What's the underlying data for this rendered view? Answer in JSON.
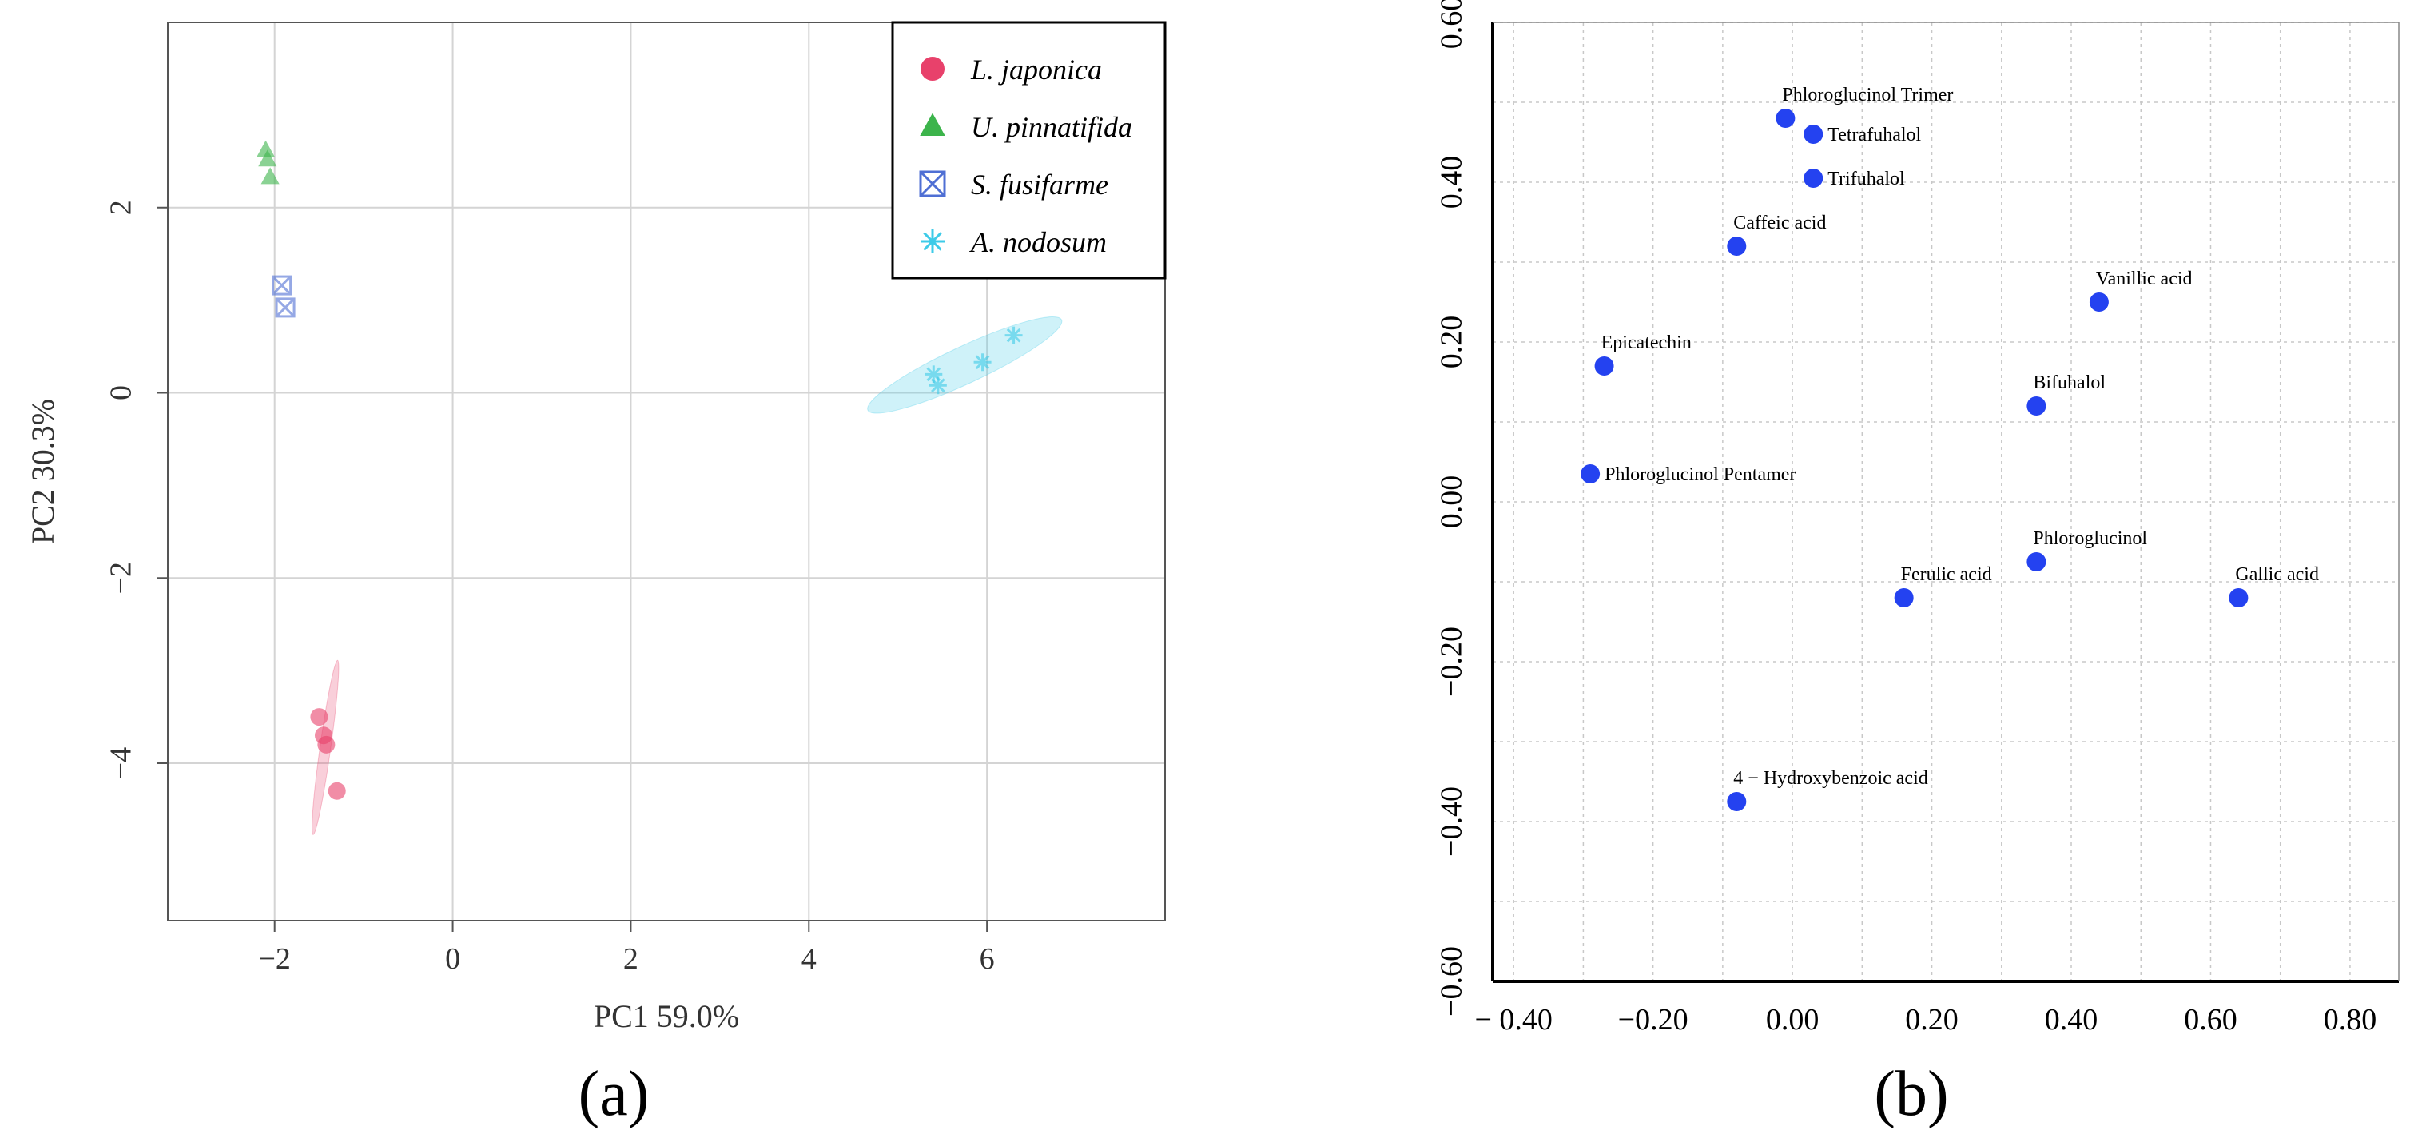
{
  "chart_data": [
    {
      "type": "scatter",
      "panel_label": "(a)",
      "title": "",
      "xlabel": "PC1 59.0%",
      "ylabel": "PC2 30.3%",
      "xlim": [
        -3.2,
        8.0
      ],
      "ylim": [
        -5.7,
        4.0
      ],
      "grid": true,
      "legend_position": "top-right",
      "x_ticks": [
        -2,
        0,
        2,
        4,
        6
      ],
      "x_tick_labels": [
        "−2",
        "0",
        "2",
        "4",
        "6"
      ],
      "y_ticks": [
        -4,
        -2,
        0,
        2
      ],
      "y_tick_labels": [
        "−4",
        "−2",
        "0",
        "2"
      ],
      "series": [
        {
          "name": "L. japonica",
          "marker": "circle",
          "color": "#e8416b",
          "points": [
            [
              -1.5,
              -3.5
            ],
            [
              -1.45,
              -3.7
            ],
            [
              -1.42,
              -3.8
            ],
            [
              -1.3,
              -4.3
            ]
          ],
          "ellipse": {
            "center": [
              -1.43,
              -3.83
            ],
            "rx": 0.06,
            "ry": 0.95,
            "angle": 8
          }
        },
        {
          "name": "U. pinnatifida",
          "marker": "triangle",
          "color": "#3cb44b",
          "points": [
            [
              -2.1,
              2.62
            ],
            [
              -2.08,
              2.52
            ],
            [
              -2.05,
              2.33
            ]
          ],
          "ellipse": null
        },
        {
          "name": "S. fusifarme",
          "marker": "square-x",
          "color": "#4f6fd4",
          "points": [
            [
              -1.92,
              1.16
            ],
            [
              -1.88,
              0.92
            ]
          ],
          "ellipse": null
        },
        {
          "name": "A. nodosum",
          "marker": "asterisk",
          "color": "#3ecbe8",
          "points": [
            [
              5.4,
              0.2
            ],
            [
              5.45,
              0.08
            ],
            [
              5.95,
              0.33
            ],
            [
              6.3,
              0.62
            ]
          ],
          "ellipse": {
            "center": [
              5.75,
              0.3
            ],
            "rx": 1.2,
            "ry": 0.2,
            "angle": -25
          }
        }
      ]
    },
    {
      "type": "scatter",
      "panel_label": "(b)",
      "title": "",
      "xlabel": "",
      "ylabel": "",
      "xlim": [
        -0.43,
        0.87
      ],
      "ylim": [
        -0.6,
        0.6
      ],
      "grid": true,
      "color": "#2442f0",
      "x_ticks": [
        -0.4,
        -0.2,
        0.0,
        0.2,
        0.4,
        0.6,
        0.8
      ],
      "x_tick_labels": [
        "− 0.40",
        "−0.20",
        "0.00",
        "0.20",
        "0.40",
        "0.60",
        "0.80"
      ],
      "y_ticks": [
        0.6,
        0.4,
        0.2,
        0.0,
        -0.2,
        -0.4,
        -0.6
      ],
      "y_tick_labels": [
        "0.60",
        "0.40",
        "0.20",
        "0.00",
        "−0.20",
        "−0.40",
        "−0.60"
      ],
      "points": [
        {
          "label": "Phloroglucinol Trimer",
          "x": -0.01,
          "y": 0.48,
          "label_pos": "above"
        },
        {
          "label": "Tetrafuhalol",
          "x": 0.03,
          "y": 0.46,
          "label_pos": "right"
        },
        {
          "label": "Trifuhalol",
          "x": 0.03,
          "y": 0.405,
          "label_pos": "right"
        },
        {
          "label": "Caffeic acid",
          "x": -0.08,
          "y": 0.32,
          "label_pos": "above"
        },
        {
          "label": "Vanillic acid",
          "x": 0.44,
          "y": 0.25,
          "label_pos": "above"
        },
        {
          "label": "Epicatechin",
          "x": -0.27,
          "y": 0.17,
          "label_pos": "above"
        },
        {
          "label": "Bifuhalol",
          "x": 0.35,
          "y": 0.12,
          "label_pos": "above"
        },
        {
          "label": "Phloroglucinol Pentamer",
          "x": -0.29,
          "y": 0.035,
          "label_pos": "right"
        },
        {
          "label": "Phloroglucinol",
          "x": 0.35,
          "y": -0.075,
          "label_pos": "above"
        },
        {
          "label": "Ferulic acid",
          "x": 0.16,
          "y": -0.12,
          "label_pos": "above"
        },
        {
          "label": "Gallic acid",
          "x": 0.64,
          "y": -0.12,
          "label_pos": "above"
        },
        {
          "label": "4 − Hydroxybenzoic acid",
          "x": -0.08,
          "y": -0.375,
          "label_pos": "above"
        }
      ]
    }
  ]
}
